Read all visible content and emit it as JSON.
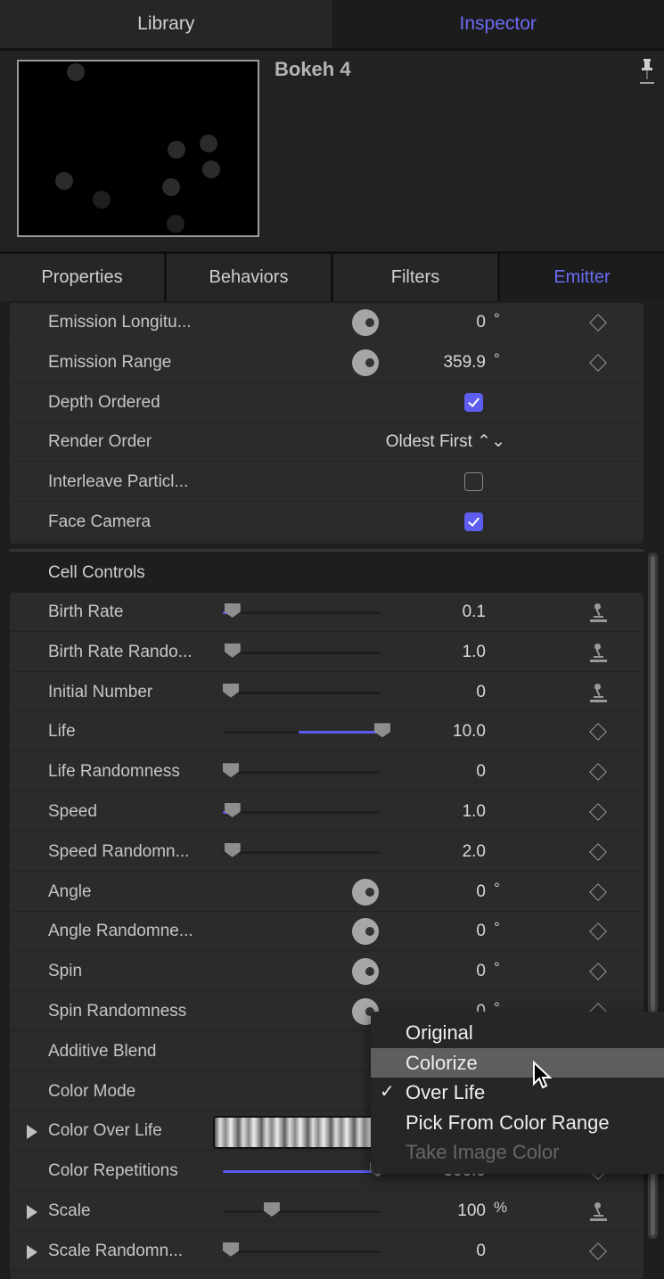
{
  "top_tabs": [
    {
      "label": "Library",
      "active": false
    },
    {
      "label": "Inspector",
      "active": true
    }
  ],
  "header": {
    "title": "Bokeh 4",
    "pin_icon": "pin-icon"
  },
  "sub_tabs": [
    {
      "label": "Properties",
      "active": false
    },
    {
      "label": "Behaviors",
      "active": false
    },
    {
      "label": "Filters",
      "active": false
    },
    {
      "label": "Emitter",
      "active": true
    }
  ],
  "accent_color": "#6b6bf5",
  "emitter_rows": [
    {
      "label": "Emission Longitu...",
      "type": "dial",
      "value": "0",
      "unit": "°",
      "action": "keyframe"
    },
    {
      "label": "Emission Range",
      "type": "dial",
      "value": "359.9",
      "unit": "°",
      "action": "keyframe"
    },
    {
      "label": "Depth Ordered",
      "type": "checkbox",
      "checked": true
    },
    {
      "label": "Render Order",
      "type": "popup",
      "value": "Oldest First ⌃⌄"
    },
    {
      "label": "Interleave Particl...",
      "type": "checkbox",
      "checked": false
    },
    {
      "label": "Face Camera",
      "type": "checkbox",
      "checked": true
    }
  ],
  "cell_controls": {
    "title": "Cell Controls",
    "rows": [
      {
        "label": "Birth Rate",
        "type": "slider",
        "value": "0.1",
        "level": 0.01,
        "fill_from": 0,
        "action": "rig"
      },
      {
        "label": "Birth Rate Rando...",
        "type": "slider",
        "value": "1.0",
        "level": 0.01,
        "action": "rig"
      },
      {
        "label": "Initial Number",
        "type": "slider",
        "value": "0",
        "level": 0,
        "action": "rig"
      },
      {
        "label": "Life",
        "type": "slider",
        "value": "10.0",
        "level": 1,
        "fill_from": 0.5,
        "action": "keyframe"
      },
      {
        "label": "Life Randomness",
        "type": "slider",
        "value": "0",
        "level": 0,
        "action": "keyframe"
      },
      {
        "label": "Speed",
        "type": "slider",
        "value": "1.0",
        "level": 0.01,
        "fill_from": 0,
        "action": "keyframe"
      },
      {
        "label": "Speed Randomn...",
        "type": "slider",
        "value": "2.0",
        "level": 0.01,
        "action": "keyframe"
      },
      {
        "label": "Angle",
        "type": "dial",
        "value": "0",
        "unit": "°",
        "action": "keyframe"
      },
      {
        "label": "Angle Randomne...",
        "type": "dial",
        "value": "0",
        "unit": "°",
        "action": "keyframe"
      },
      {
        "label": "Spin",
        "type": "dial",
        "value": "0",
        "unit": "°",
        "action": "keyframe"
      },
      {
        "label": "Spin Randomness",
        "type": "dial",
        "value": "0",
        "unit": "°",
        "action": "keyframe"
      },
      {
        "label": "Additive Blend",
        "type": "blank"
      },
      {
        "label": "Color Mode",
        "type": "blank"
      },
      {
        "label": "Color Over Life",
        "type": "gradient",
        "expandable": true
      },
      {
        "label": "Color Repetitions",
        "type": "slider",
        "value": "300.0",
        "level": 0.97,
        "fill_from": 0,
        "action": "keyframe"
      },
      {
        "label": "Scale",
        "type": "slider",
        "value": "100",
        "unit": "%",
        "level": 0.27,
        "action": "rig",
        "expandable": true
      },
      {
        "label": "Scale Randomn...",
        "type": "slider",
        "value": "0",
        "level": 0,
        "action": "keyframe",
        "expandable": true
      }
    ]
  },
  "color_mode_menu": {
    "items": [
      {
        "label": "Original",
        "state": "normal"
      },
      {
        "label": "Colorize",
        "state": "highlighted"
      },
      {
        "label": "Over Life",
        "state": "checked"
      },
      {
        "label": "Pick From Color Range",
        "state": "normal"
      },
      {
        "label": "Take Image Color",
        "state": "disabled"
      }
    ],
    "check_mark": "✓"
  }
}
